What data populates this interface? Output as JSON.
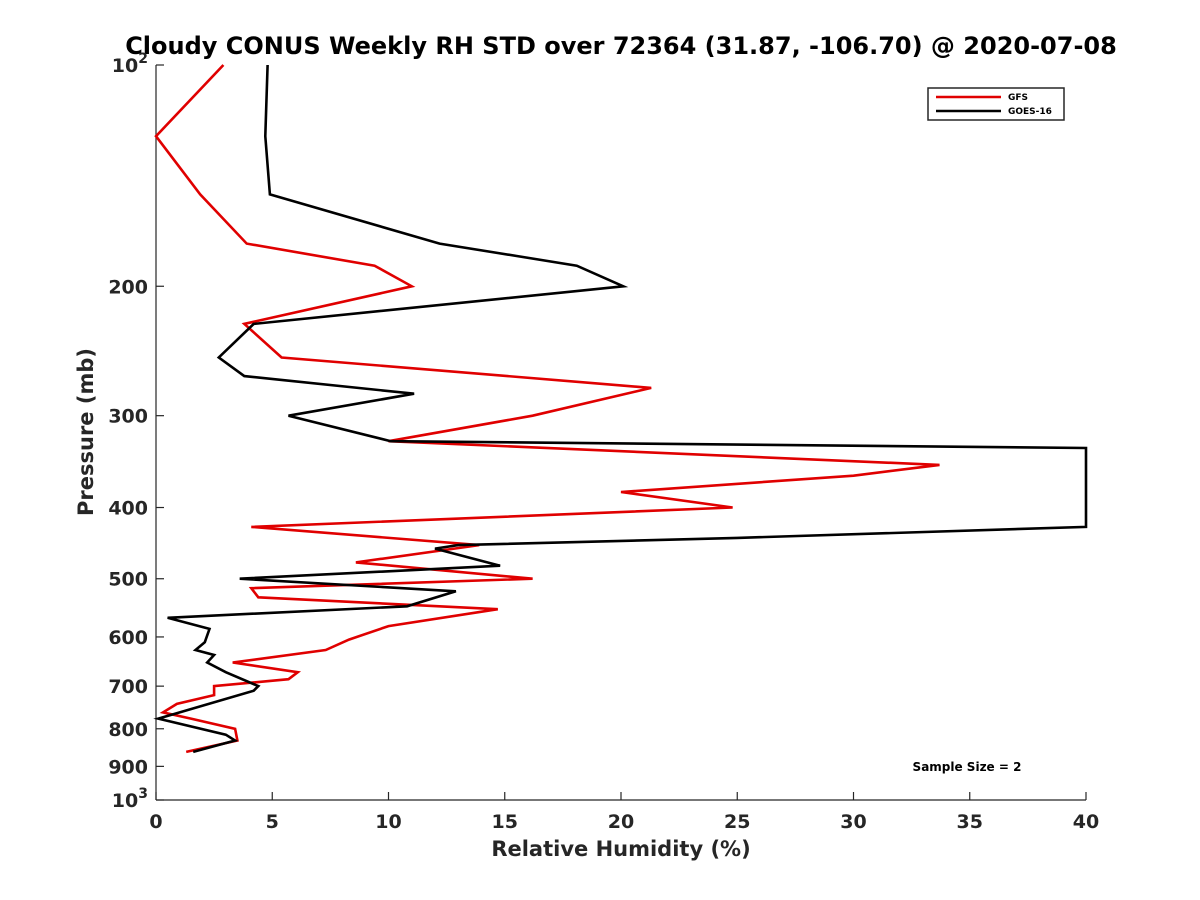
{
  "chart_data": {
    "type": "line",
    "title": "Cloudy CONUS Weekly RH STD over 72364 (31.87, -106.70) @ 2020-07-08",
    "xlabel": "Relative Humidity (%)",
    "ylabel": "Pressure (mb)",
    "xlim": [
      0,
      40
    ],
    "ylim": [
      100,
      1000
    ],
    "y_scale": "log",
    "y_reversed": true,
    "grid": false,
    "legend_position": "top-right",
    "x_ticks": [
      "0",
      "5",
      "10",
      "15",
      "20",
      "25",
      "30",
      "35",
      "40"
    ],
    "y_ticks": [
      {
        "value": 100,
        "base": "10",
        "exp": "2"
      },
      {
        "value": 200,
        "label": "200"
      },
      {
        "value": 300,
        "label": "300"
      },
      {
        "value": 400,
        "label": "400"
      },
      {
        "value": 500,
        "label": "500"
      },
      {
        "value": 600,
        "label": "600"
      },
      {
        "value": 700,
        "label": "700"
      },
      {
        "value": 800,
        "label": "800"
      },
      {
        "value": 900,
        "label": "900"
      },
      {
        "value": 1000,
        "base": "10",
        "exp": "3"
      }
    ],
    "series": [
      {
        "name": "GFS",
        "color": "#e00000",
        "points": [
          [
            2.9,
            100
          ],
          [
            0.0,
            125
          ],
          [
            1.9,
            150
          ],
          [
            3.9,
            175
          ],
          [
            9.4,
            187.5
          ],
          [
            11.0,
            200
          ],
          [
            3.8,
            225
          ],
          [
            5.4,
            250
          ],
          [
            21.3,
            275
          ],
          [
            16.2,
            300
          ],
          [
            10.0,
            325
          ],
          [
            33.7,
            350
          ],
          [
            30.0,
            362
          ],
          [
            20.0,
            381
          ],
          [
            24.8,
            400
          ],
          [
            4.1,
            425
          ],
          [
            13.9,
            450
          ],
          [
            8.6,
            475
          ],
          [
            16.2,
            500
          ],
          [
            4.1,
            515
          ],
          [
            4.4,
            530
          ],
          [
            14.7,
            550
          ],
          [
            10.0,
            580
          ],
          [
            8.3,
            605
          ],
          [
            7.3,
            625
          ],
          [
            3.3,
            650
          ],
          [
            6.1,
            670
          ],
          [
            5.7,
            685
          ],
          [
            2.5,
            700
          ],
          [
            2.5,
            720
          ],
          [
            0.9,
            740
          ],
          [
            0.3,
            760
          ],
          [
            1.5,
            775
          ],
          [
            3.4,
            800
          ],
          [
            3.5,
            830
          ],
          [
            1.3,
            860
          ]
        ]
      },
      {
        "name": "GOES-16",
        "color": "#000000",
        "points": [
          [
            4.8,
            100
          ],
          [
            4.7,
            125
          ],
          [
            4.9,
            150
          ],
          [
            12.2,
            175
          ],
          [
            18.1,
            187.5
          ],
          [
            20.1,
            200
          ],
          [
            4.2,
            225
          ],
          [
            2.7,
            250
          ],
          [
            3.8,
            265
          ],
          [
            11.1,
            280
          ],
          [
            5.7,
            300
          ],
          [
            10.1,
            325
          ],
          [
            40.0,
            332
          ],
          [
            40.0,
            425
          ],
          [
            25.0,
            440
          ],
          [
            13.0,
            450
          ],
          [
            12.0,
            455
          ],
          [
            14.8,
            480
          ],
          [
            3.6,
            500
          ],
          [
            12.9,
            520
          ],
          [
            10.8,
            545
          ],
          [
            0.5,
            565
          ],
          [
            2.3,
            585
          ],
          [
            2.1,
            610
          ],
          [
            1.7,
            625
          ],
          [
            2.5,
            635
          ],
          [
            2.2,
            650
          ],
          [
            3.0,
            670
          ],
          [
            4.4,
            700
          ],
          [
            4.2,
            710
          ],
          [
            0.1,
            775
          ],
          [
            3.0,
            815
          ],
          [
            3.4,
            830
          ],
          [
            1.6,
            860
          ]
        ]
      }
    ],
    "annotation": "Sample Size = 2"
  }
}
